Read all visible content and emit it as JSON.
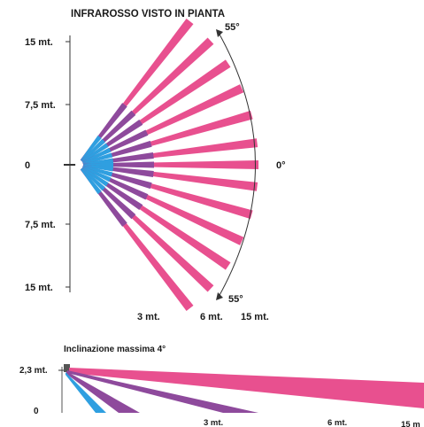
{
  "plan_view": {
    "title": "INFRAROSSO VISTO IN PIANTA",
    "y_labels": [
      "15 mt.",
      "7,5 mt.",
      "0",
      "7,5 mt.",
      "15 mt."
    ],
    "x_labels": [
      "3 mt.",
      "6 mt.",
      "15 mt."
    ],
    "angle_top": "55°",
    "angle_center": "0°",
    "angle_bottom": "55°",
    "beam_angles_deg": [
      -52,
      -43,
      -34,
      -25,
      -16,
      -7,
      0,
      7,
      16,
      25,
      34,
      43,
      52
    ],
    "colors": {
      "far": "#e8508f",
      "mid": "#8e4a9c",
      "near": "#2f9fe0",
      "axis": "#333333"
    }
  },
  "side_view": {
    "title": "Inclinazione massima 4°",
    "y_labels": [
      "2,3 mt.",
      "0"
    ],
    "x_labels": [
      "3 mt.",
      "6 mt.",
      "15 m"
    ],
    "colors": {
      "far": "#e8508f",
      "mid": "#8e4a9c",
      "near": "#2f9fe0"
    }
  }
}
